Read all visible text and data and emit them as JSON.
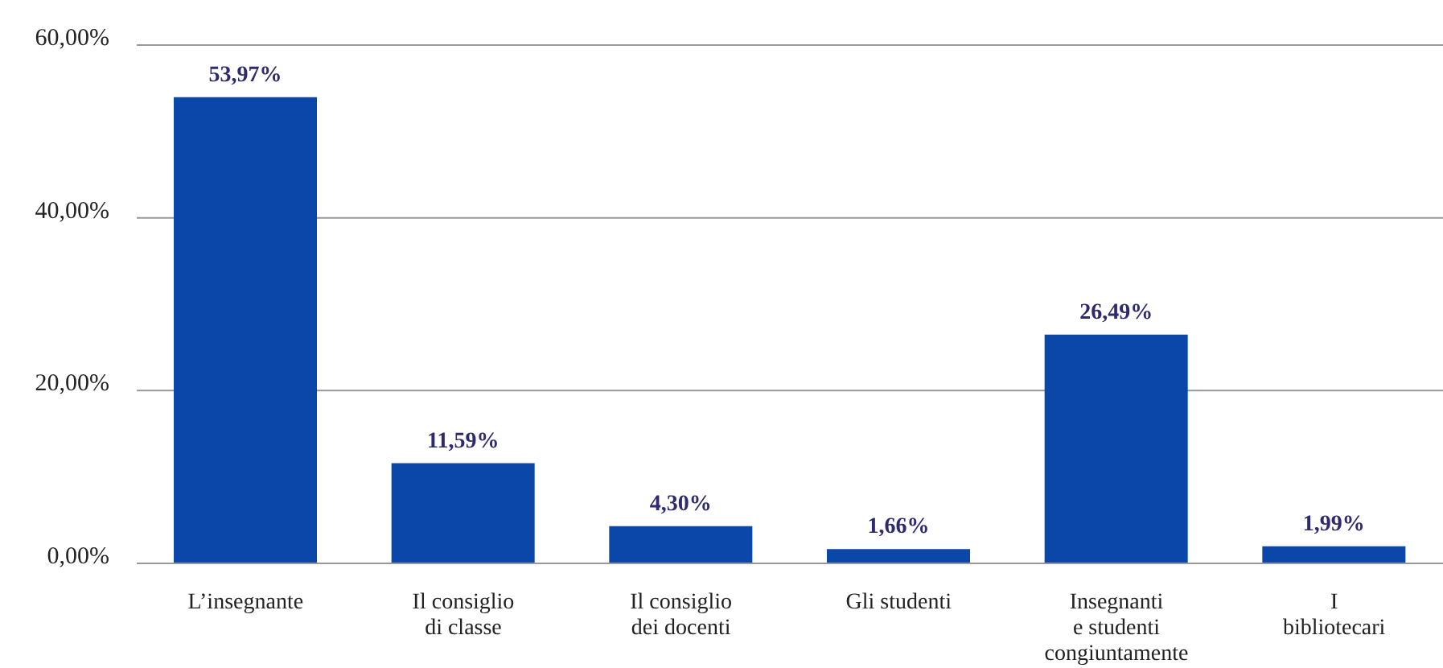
{
  "chart_data": {
    "type": "bar",
    "categories": [
      "L’insegnante",
      "Il consiglio di classe",
      "Il consiglio dei docenti",
      "Gli studenti",
      "Insegnanti e studenti congiuntamente",
      "I bibliotecari"
    ],
    "values": [
      53.97,
      11.59,
      4.3,
      1.66,
      26.49,
      1.99
    ],
    "value_labels": [
      "53,97%",
      "11,59%",
      "4,30%",
      "1,66%",
      "26,49%",
      "1,99%"
    ],
    "color": "#0a47a8",
    "ylim": [
      0,
      60
    ],
    "yticks": [
      {
        "value": 0,
        "label": "0,00%"
      },
      {
        "value": 20,
        "label": "20,00%"
      },
      {
        "value": 40,
        "label": "40,00%"
      },
      {
        "value": 60,
        "label": "60,00%"
      }
    ],
    "grid": "y"
  }
}
